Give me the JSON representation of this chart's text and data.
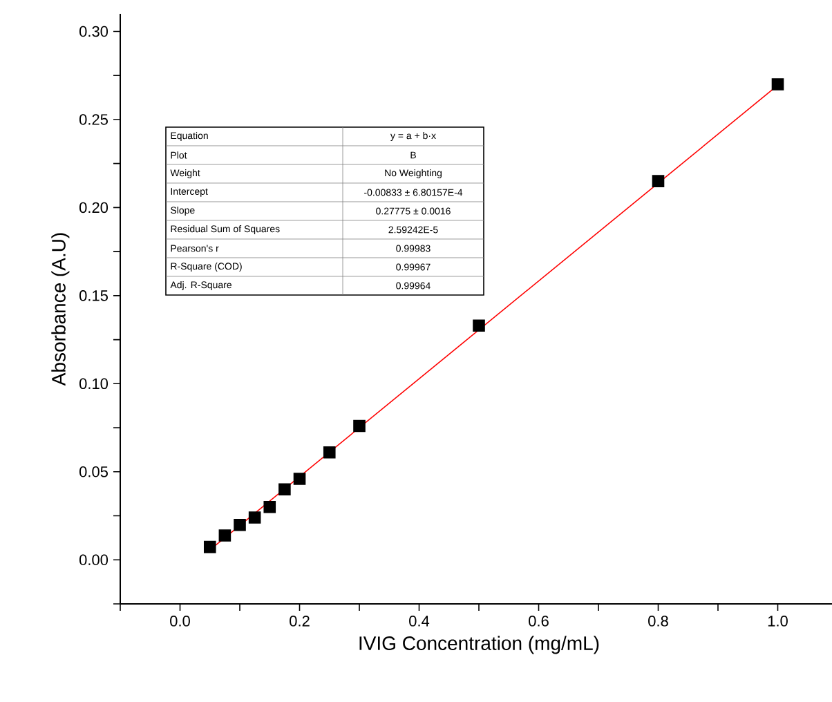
{
  "chart_data": {
    "type": "scatter",
    "xlabel": "IVIG Concentration (mg/mL)",
    "ylabel": "Absorbance (A.U)",
    "xlim": [
      -0.1,
      1.1
    ],
    "ylim": [
      -0.025,
      0.31
    ],
    "xticks": [
      {
        "value": -0.1,
        "label": null
      },
      {
        "value": 0.0,
        "label": "0.0"
      },
      {
        "value": 0.1,
        "label": null
      },
      {
        "value": 0.2,
        "label": "0.2"
      },
      {
        "value": 0.3,
        "label": null
      },
      {
        "value": 0.4,
        "label": "0.4"
      },
      {
        "value": 0.5,
        "label": null
      },
      {
        "value": 0.6,
        "label": "0.6"
      },
      {
        "value": 0.7,
        "label": null
      },
      {
        "value": 0.8,
        "label": "0.8"
      },
      {
        "value": 0.9,
        "label": null
      },
      {
        "value": 1.0,
        "label": "1.0"
      },
      {
        "value": 1.1,
        "label": null
      }
    ],
    "yticks": [
      {
        "value": -0.025,
        "label": null
      },
      {
        "value": 0.0,
        "label": "0.00"
      },
      {
        "value": 0.025,
        "label": null
      },
      {
        "value": 0.05,
        "label": "0.05"
      },
      {
        "value": 0.075,
        "label": null
      },
      {
        "value": 0.1,
        "label": "0.10"
      },
      {
        "value": 0.125,
        "label": null
      },
      {
        "value": 0.15,
        "label": "0.15"
      },
      {
        "value": 0.175,
        "label": null
      },
      {
        "value": 0.2,
        "label": "0.20"
      },
      {
        "value": 0.225,
        "label": null
      },
      {
        "value": 0.25,
        "label": "0.25"
      },
      {
        "value": 0.275,
        "label": null
      },
      {
        "value": 0.3,
        "label": "0.30"
      }
    ],
    "grid": false,
    "marker": "square",
    "series": [
      {
        "color": "#000000",
        "x": [
          0.05,
          0.075,
          0.1,
          0.125,
          0.15,
          0.175,
          0.2,
          0.25,
          0.3,
          0.5,
          0.8,
          1.0
        ],
        "values": [
          0.0073,
          0.0138,
          0.0198,
          0.024,
          0.03,
          0.04,
          0.046,
          0.061,
          0.076,
          0.133,
          0.215,
          0.27
        ]
      },
      {
        "type": "line",
        "color": "#ff0000",
        "marker": "none",
        "line_style": "solid",
        "x": [
          0.05,
          1.0
        ],
        "values": [
          0.0056,
          0.2694
        ]
      }
    ],
    "annotations": [
      "Equation",
      "y = a + b·x",
      "Plot",
      "B",
      "Weight",
      "No Weighting",
      "Intercept",
      "-0.00833 ± 6.80157E-4",
      "Slope",
      "0.27775 ± 0.0016",
      "Residual Sum of Squares",
      "2.59242E-5",
      "Pearson's r",
      "0.99983",
      "R-Square (COD)",
      "0.99967",
      "Adj. R-Square",
      "0.99964"
    ]
  }
}
